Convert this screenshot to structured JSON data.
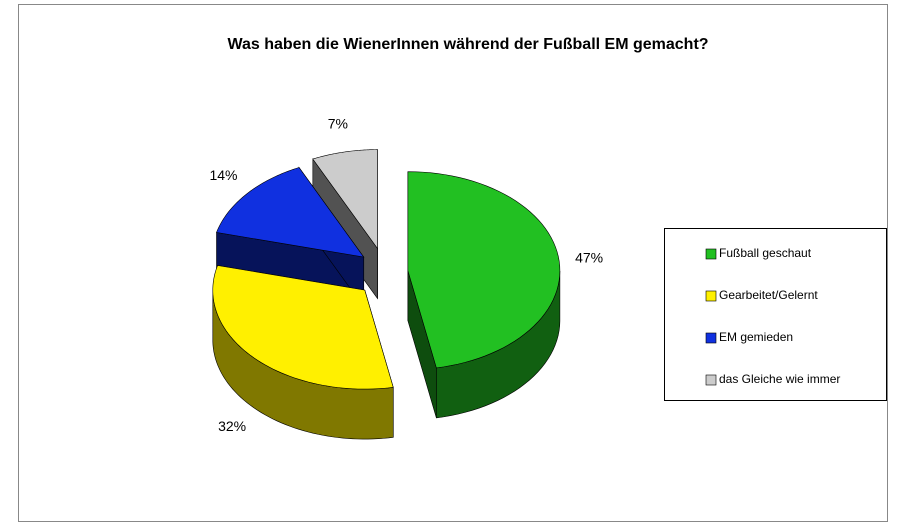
{
  "chart_data": {
    "type": "pie3d",
    "title": "Was haben die WienerInnen während der Fußball EM gemacht?",
    "categories": [
      "Fußball geschaut",
      "Gearbeitet/Gelernt",
      "EM gemieden",
      "das Gleiche wie immer"
    ],
    "values": [
      47,
      32,
      14,
      7
    ],
    "value_labels": [
      "47%",
      "32%",
      "14%",
      "7%"
    ],
    "colors": [
      "#22c022",
      "#fff000",
      "#1030e0",
      "#cccccc"
    ],
    "legend": "right"
  }
}
